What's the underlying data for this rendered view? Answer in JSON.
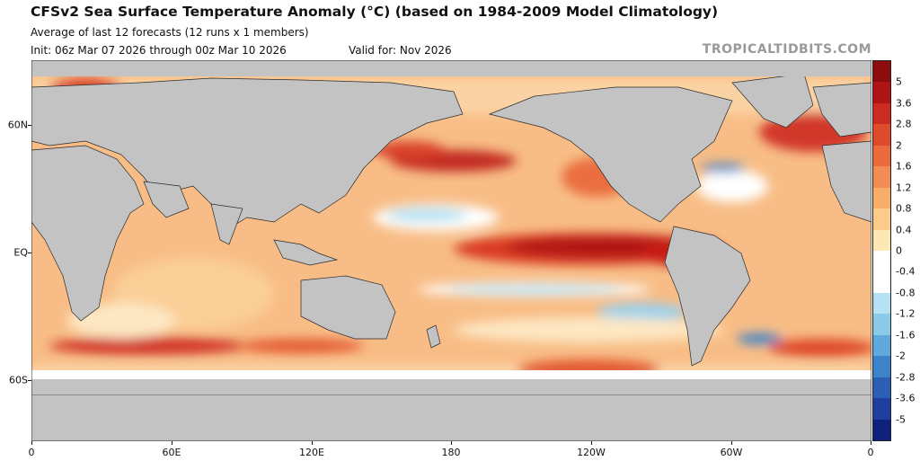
{
  "header": {
    "title": "CFSv2 Sea Surface Temperature Anomaly (°C) (based on 1984-2009 Model Climatology)",
    "subtitle": "Average of last 12 forecasts (12 runs x 1 members)",
    "init": "Init: 06z Mar 07 2026 through 00z Mar 10 2026",
    "valid": "Valid for: Nov 2026",
    "brand": "TROPICALTIDBITS.COM"
  },
  "map": {
    "x_labels": [
      "0",
      "60E",
      "120E",
      "180",
      "120W",
      "60W",
      "0"
    ],
    "y_labels": [
      "60N",
      "EQ",
      "60S"
    ],
    "land_color": "#c3c3c3",
    "ocean_base_color": "#f8c089"
  },
  "colorbar": {
    "labels": [
      "5",
      "3.6",
      "2.8",
      "2",
      "1.6",
      "1.2",
      "0.8",
      "0.4",
      "0",
      "-0.4",
      "-0.8",
      "-1.2",
      "-1.6",
      "-2",
      "-2.8",
      "-3.6",
      "-5"
    ],
    "colors": [
      "#8b0d0d",
      "#b01515",
      "#cd2b1f",
      "#de4a2c",
      "#ea6a3c",
      "#f38c54",
      "#f8ad6b",
      "#fbcb8a",
      "#fde7b2",
      "#ffffff",
      "#ffffff",
      "#b7e2f3",
      "#8ccaea",
      "#5fa9dc",
      "#3d83c9",
      "#2b5fb6",
      "#1e3f9d",
      "#10217d"
    ]
  }
}
